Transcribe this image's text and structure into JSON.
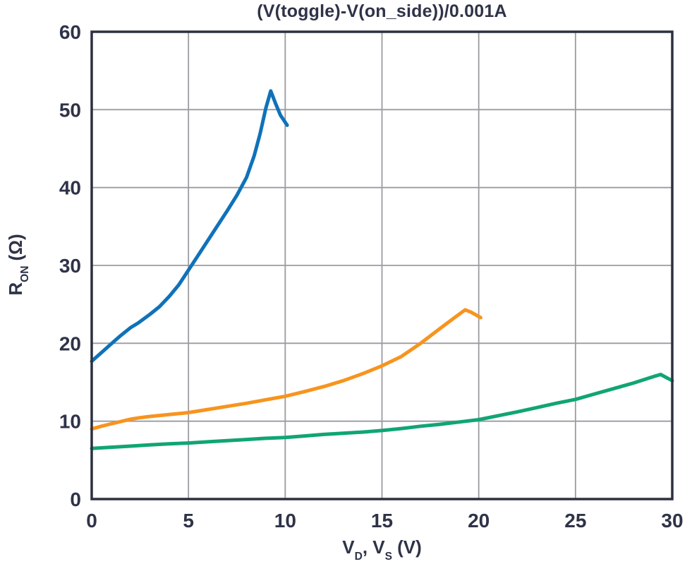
{
  "figure": {
    "background": "#ffffff",
    "text_color": "#2f3348",
    "grid_color": "#9b9ba1",
    "border_color": "#2c3040"
  },
  "chart_data": {
    "type": "line",
    "title": "(V(toggle)-V(on_side))/0.001A",
    "xlabel": "V_D, V_S (V)",
    "ylabel": "R_ON (Ω)",
    "xlim": [
      0,
      30
    ],
    "ylim": [
      0,
      60
    ],
    "xticks": [
      0,
      5,
      10,
      15,
      20,
      25,
      30
    ],
    "yticks": [
      0,
      10,
      20,
      30,
      40,
      50,
      60
    ],
    "grid": true,
    "legend_position": "none",
    "series": [
      {
        "name": "blue-curve",
        "color": "#0f72b9",
        "points": [
          [
            0,
            17.7
          ],
          [
            0.5,
            18.8
          ],
          [
            1,
            19.9
          ],
          [
            1.5,
            21.0
          ],
          [
            2,
            22.0
          ],
          [
            2.4,
            22.6
          ],
          [
            3,
            23.7
          ],
          [
            3.5,
            24.7
          ],
          [
            4,
            26.0
          ],
          [
            4.5,
            27.5
          ],
          [
            5,
            29.4
          ],
          [
            5.5,
            31.3
          ],
          [
            6,
            33.2
          ],
          [
            6.5,
            35.1
          ],
          [
            7,
            37.0
          ],
          [
            7.5,
            39.0
          ],
          [
            8,
            41.3
          ],
          [
            8.4,
            44.1
          ],
          [
            8.7,
            46.9
          ],
          [
            9,
            50.2
          ],
          [
            9.25,
            52.4
          ],
          [
            9.5,
            50.8
          ],
          [
            9.75,
            49.3
          ],
          [
            10.1,
            48.0
          ]
        ]
      },
      {
        "name": "orange-curve",
        "color": "#f7941e",
        "points": [
          [
            0,
            9.0
          ],
          [
            0.5,
            9.35
          ],
          [
            1,
            9.65
          ],
          [
            1.5,
            9.95
          ],
          [
            2,
            10.25
          ],
          [
            2.5,
            10.45
          ],
          [
            3,
            10.6
          ],
          [
            4,
            10.85
          ],
          [
            5,
            11.1
          ],
          [
            6,
            11.5
          ],
          [
            7,
            11.9
          ],
          [
            8,
            12.3
          ],
          [
            9,
            12.75
          ],
          [
            10,
            13.2
          ],
          [
            11,
            13.8
          ],
          [
            12,
            14.45
          ],
          [
            13,
            15.2
          ],
          [
            14,
            16.1
          ],
          [
            15,
            17.1
          ],
          [
            16,
            18.3
          ],
          [
            17,
            20.0
          ],
          [
            18,
            21.9
          ],
          [
            18.7,
            23.2
          ],
          [
            19.3,
            24.3
          ],
          [
            19.6,
            24.0
          ],
          [
            20.1,
            23.3
          ]
        ]
      },
      {
        "name": "green-curve",
        "color": "#10a574",
        "points": [
          [
            0,
            6.5
          ],
          [
            1,
            6.65
          ],
          [
            2,
            6.8
          ],
          [
            3,
            6.95
          ],
          [
            4,
            7.1
          ],
          [
            5,
            7.2
          ],
          [
            6,
            7.35
          ],
          [
            7,
            7.5
          ],
          [
            8,
            7.65
          ],
          [
            9,
            7.8
          ],
          [
            10,
            7.9
          ],
          [
            11,
            8.1
          ],
          [
            12,
            8.3
          ],
          [
            13,
            8.45
          ],
          [
            14,
            8.6
          ],
          [
            15,
            8.8
          ],
          [
            16,
            9.05
          ],
          [
            17,
            9.35
          ],
          [
            18,
            9.6
          ],
          [
            19,
            9.9
          ],
          [
            20,
            10.2
          ],
          [
            21,
            10.7
          ],
          [
            22,
            11.2
          ],
          [
            23,
            11.75
          ],
          [
            24,
            12.3
          ],
          [
            25,
            12.8
          ],
          [
            26,
            13.5
          ],
          [
            27,
            14.2
          ],
          [
            28,
            14.9
          ],
          [
            29,
            15.7
          ],
          [
            29.4,
            16.0
          ],
          [
            30,
            15.2
          ]
        ]
      }
    ]
  },
  "axis_labels": {
    "y": {
      "symbol": "R",
      "subscript": "ON",
      "unit": "(Ω)"
    },
    "x": {
      "symbol1": "V",
      "subscript1": "D",
      "mid": ", V",
      "subscript2": "S",
      "unit": "(V)"
    }
  }
}
